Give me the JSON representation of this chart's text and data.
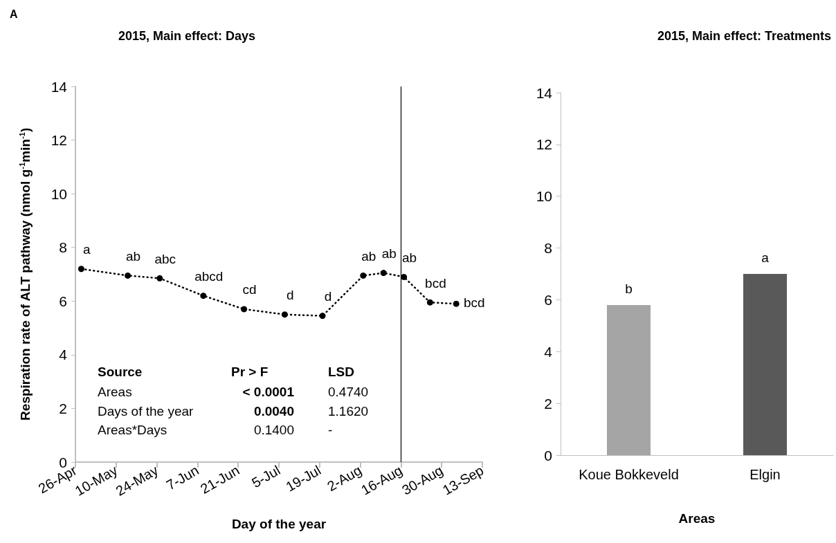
{
  "chart_data": [
    {
      "type": "line",
      "title": "2015, Main effect: Days",
      "xlabel": "Day of the year",
      "ylabel": "Respiration rate of ALT pathway (nmol g$^{-1}$min$^{-1}$)",
      "x": [
        "--04-28",
        "--05-14",
        "--05-25",
        "--06-09",
        "--06-23",
        "--07-07",
        "--07-20",
        "--08-03",
        "--08-10",
        "--08-17",
        "--08-26",
        "--09-04"
      ],
      "series": [
        {
          "color": "#000000",
          "values": [
            7.2,
            6.95,
            6.85,
            6.2,
            5.7,
            5.5,
            5.45,
            6.95,
            7.05,
            6.9,
            5.95,
            5.9
          ],
          "value_labels": [
            "a",
            "ab",
            "abc",
            "abcd",
            "cd",
            "d",
            "d",
            "ab",
            "ab",
            "ab",
            "bcd",
            "bcd"
          ]
        }
      ],
      "marker": "circle",
      "line_style": "dotted",
      "grid": false,
      "xlim": [
        "--04-26",
        "--09-13"
      ],
      "xticks": [
        {
          "value": "--04-26",
          "label": "26-Apr"
        },
        {
          "value": "--05-10",
          "label": "10-May"
        },
        {
          "value": "--05-24",
          "label": "24-May"
        },
        {
          "value": "--06-07",
          "label": "7-Jun"
        },
        {
          "value": "--06-21",
          "label": "21-Jun"
        },
        {
          "value": "--07-05",
          "label": "5-Jul"
        },
        {
          "value": "--07-19",
          "label": "19-Jul"
        },
        {
          "value": "--08-02",
          "label": "2-Aug"
        },
        {
          "value": "--08-16",
          "label": "16-Aug"
        },
        {
          "value": "--08-30",
          "label": "30-Aug"
        },
        {
          "value": "--09-13",
          "label": "13-Sep"
        }
      ],
      "ylim": [
        0,
        14
      ],
      "yticks": [
        0,
        2,
        4,
        6,
        8,
        10,
        12,
        14
      ],
      "ref_lines": [
        {
          "axis": "x",
          "value": "--08-16",
          "color": "#000000",
          "line_style": "solid"
        }
      ],
      "annotations": [
        "A",
        "Source",
        "Pr > F",
        "LSD",
        "Areas",
        "< 0.0001",
        "0.4740",
        "Days of the year",
        "0.0040",
        "1.1620",
        "Areas*Days",
        "0.1400",
        "-"
      ]
    },
    {
      "type": "bar",
      "title": "2015, Main effect: Treatments",
      "xlabel": "Areas",
      "categories": [
        "Koue Bokkeveld",
        "Elgin"
      ],
      "values": [
        5.8,
        7.0
      ],
      "colors": [
        "#a5a5a5",
        "#595959"
      ],
      "value_labels": [
        "b",
        "a"
      ],
      "ylim": [
        0,
        14
      ],
      "yticks": [
        0,
        2,
        4,
        6,
        8,
        10,
        12,
        14
      ],
      "grid": false
    }
  ]
}
